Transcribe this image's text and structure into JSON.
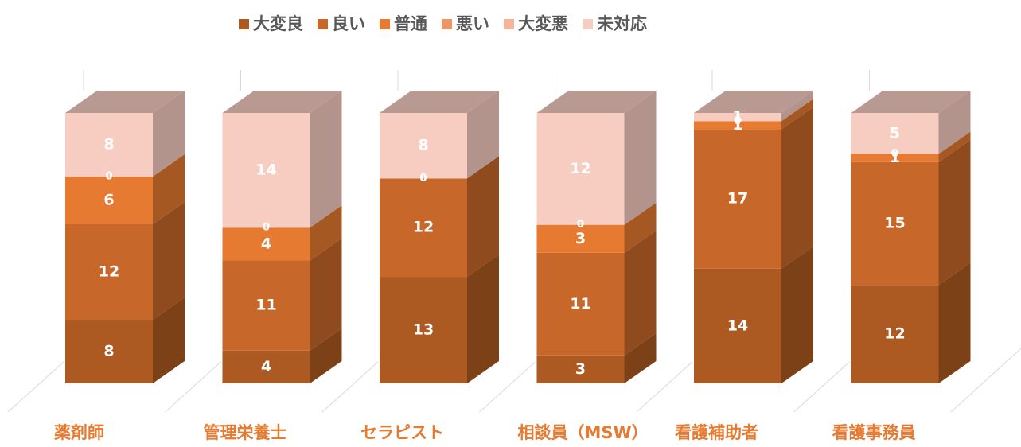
{
  "chart_data": {
    "type": "bar",
    "stacked": "percent",
    "categories": [
      "薬剤師",
      "管理栄養士",
      "セラピスト",
      "相談員（MSW）",
      "看護補助者",
      "看護事務員"
    ],
    "series": [
      {
        "name": "大変良",
        "color": "#ad5a22",
        "values": [
          8,
          4,
          13,
          3,
          14,
          12
        ]
      },
      {
        "name": "良い",
        "color": "#c7682a",
        "values": [
          12,
          11,
          12,
          11,
          17,
          15
        ]
      },
      {
        "name": "普通",
        "color": "#e67a30",
        "values": [
          6,
          4,
          0,
          3,
          1,
          1
        ]
      },
      {
        "name": "悪い",
        "color": "#ef9468",
        "values": [
          0,
          0,
          0,
          0,
          0,
          0
        ]
      },
      {
        "name": "大変悪",
        "color": "#f5b49c",
        "values": [
          0,
          0,
          0,
          0,
          0,
          0
        ]
      },
      {
        "name": "未対応",
        "color": "#f7cdc2",
        "values": [
          8,
          14,
          8,
          12,
          1,
          5
        ]
      }
    ],
    "legend": "top"
  }
}
